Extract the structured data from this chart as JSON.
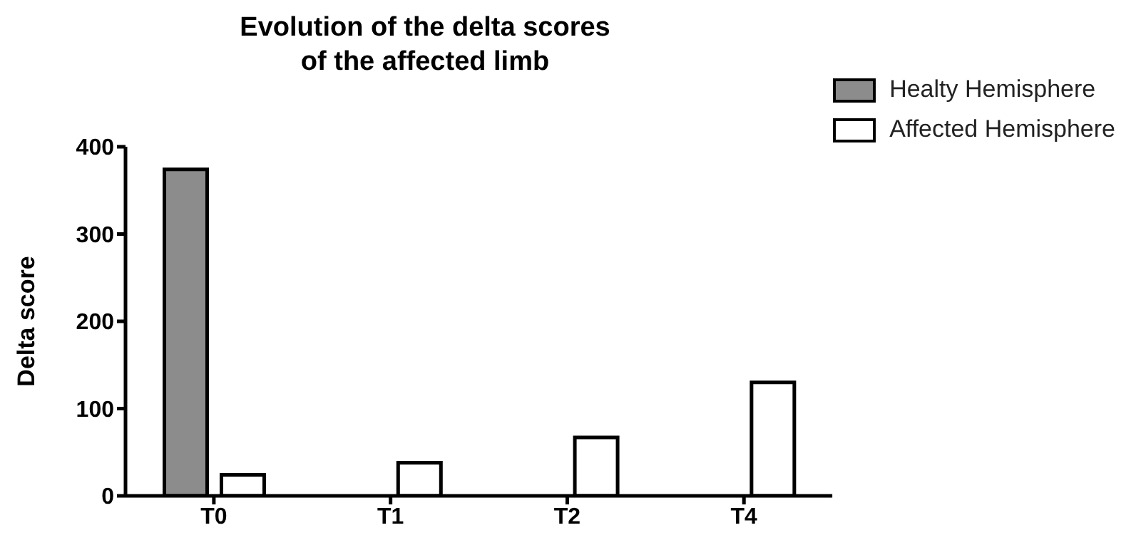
{
  "chart_data": {
    "type": "bar",
    "title": "Evolution of the delta scores\nof the affected limb",
    "ylabel": "Delta score",
    "categories": [
      "T0",
      "T1",
      "T2",
      "T4"
    ],
    "series": [
      {
        "name": "Healty Hemisphere",
        "color": "#8c8c8c",
        "values": [
          374,
          null,
          null,
          null
        ]
      },
      {
        "name": "Affected Hemisphere",
        "color": "#ffffff",
        "values": [
          24,
          38,
          67,
          130
        ]
      }
    ],
    "ylim": [
      0,
      400
    ],
    "yticks": [
      0,
      100,
      200,
      300,
      400
    ],
    "grid": false,
    "legend": "top right"
  }
}
